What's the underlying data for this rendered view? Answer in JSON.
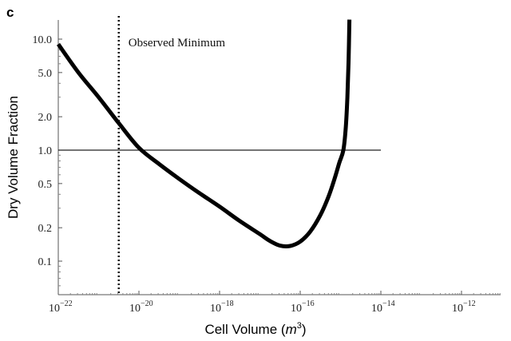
{
  "chart_data": {
    "type": "line",
    "panel_label": "c",
    "title": "",
    "xlabel": "Cell Volume (",
    "xlabel_unit": "m",
    "xlabel_exp": "3",
    "xlabel_close": ")",
    "ylabel": "Dry Volume Fraction",
    "xscale": "log",
    "yscale": "log",
    "xlim": [
      1e-22,
      1e-11
    ],
    "ylim": [
      0.05,
      15
    ],
    "x_ticks": [
      {
        "base": "10",
        "exp": "−22",
        "log": -22
      },
      {
        "base": "10",
        "exp": "−20",
        "log": -20
      },
      {
        "base": "10",
        "exp": "−18",
        "log": -18
      },
      {
        "base": "10",
        "exp": "−16",
        "log": -16
      },
      {
        "base": "10",
        "exp": "−14",
        "log": -14
      },
      {
        "base": "10",
        "exp": "−12",
        "log": -12
      }
    ],
    "y_ticks": [
      {
        "label": "10.0",
        "value": 10
      },
      {
        "label": "5.0",
        "value": 5
      },
      {
        "label": "2.0",
        "value": 2
      },
      {
        "label": "1.0",
        "value": 1
      },
      {
        "label": "0.5",
        "value": 0.5
      },
      {
        "label": "0.2",
        "value": 0.2
      },
      {
        "label": "0.1",
        "value": 0.1
      }
    ],
    "series": [
      {
        "name": "Dry volume fraction",
        "log10_x": [
          -22,
          -21.5,
          -21,
          -20.5,
          -20,
          -19.5,
          -19,
          -18.5,
          -18,
          -17.5,
          -17,
          -16.75,
          -16.5,
          -16.25,
          -16,
          -15.75,
          -15.5,
          -15.3,
          -15.15,
          -15.03,
          -14.93,
          -14.87,
          -14.83,
          -14.8,
          -14.78
        ],
        "y": [
          9.0,
          5.0,
          3.0,
          1.75,
          1.05,
          0.75,
          0.55,
          0.41,
          0.31,
          0.23,
          0.175,
          0.152,
          0.138,
          0.137,
          0.15,
          0.185,
          0.26,
          0.38,
          0.55,
          0.77,
          1.0,
          1.6,
          3.0,
          6.5,
          15
        ]
      }
    ],
    "reference_line": {
      "y": 1.0,
      "x_end_log10": -14
    },
    "annotations": [
      {
        "text": "Observed Minimum",
        "x_log10": -20.5,
        "style": "dotted vertical line"
      }
    ],
    "grid": false,
    "legend": "none"
  }
}
